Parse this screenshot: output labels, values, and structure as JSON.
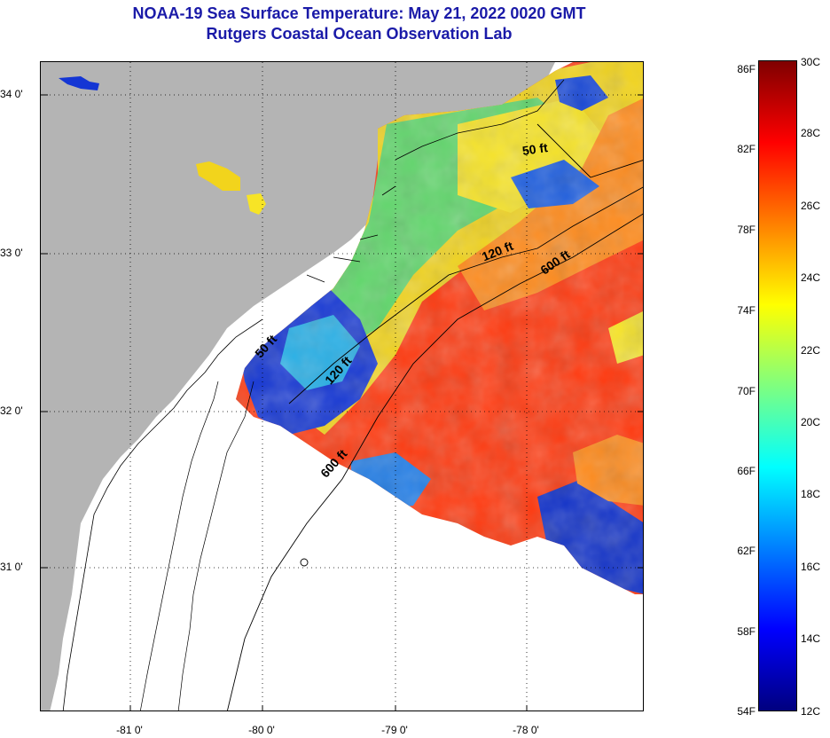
{
  "title": "NOAA-19 Sea Surface Temperature:  May 21, 2022 0020 GMT",
  "subtitle": "Rutgers Coastal Ocean Observation Lab",
  "map": {
    "lat_labels": [
      "34 0'",
      "33 0'",
      "32 0'",
      "31 0'"
    ],
    "lon_labels": [
      "-81 0'",
      "-80 0'",
      "-79 0'",
      "-78 0'"
    ],
    "isobath_labels": [
      "50 ft",
      "120 ft",
      "600 ft",
      "50 ft",
      "120 ft",
      "600 ft"
    ],
    "colors": {
      "land": "#b4b4b4",
      "no_data": "#ffffff",
      "warm": "#ff3a10",
      "cool": "#1030d0"
    }
  },
  "colorbar": {
    "fahrenheit_labels": [
      "86F",
      "82F",
      "78F",
      "74F",
      "70F",
      "66F",
      "62F",
      "58F",
      "54F"
    ],
    "celsius_labels": [
      "30C",
      "28C",
      "26C",
      "24C",
      "22C",
      "20C",
      "18C",
      "16C",
      "14C",
      "12C"
    ],
    "colors": [
      "#00007f",
      "#0000ff",
      "#007fff",
      "#00ffff",
      "#7fff7f",
      "#ffff00",
      "#ff7f00",
      "#ff0000",
      "#7f0000"
    ]
  }
}
